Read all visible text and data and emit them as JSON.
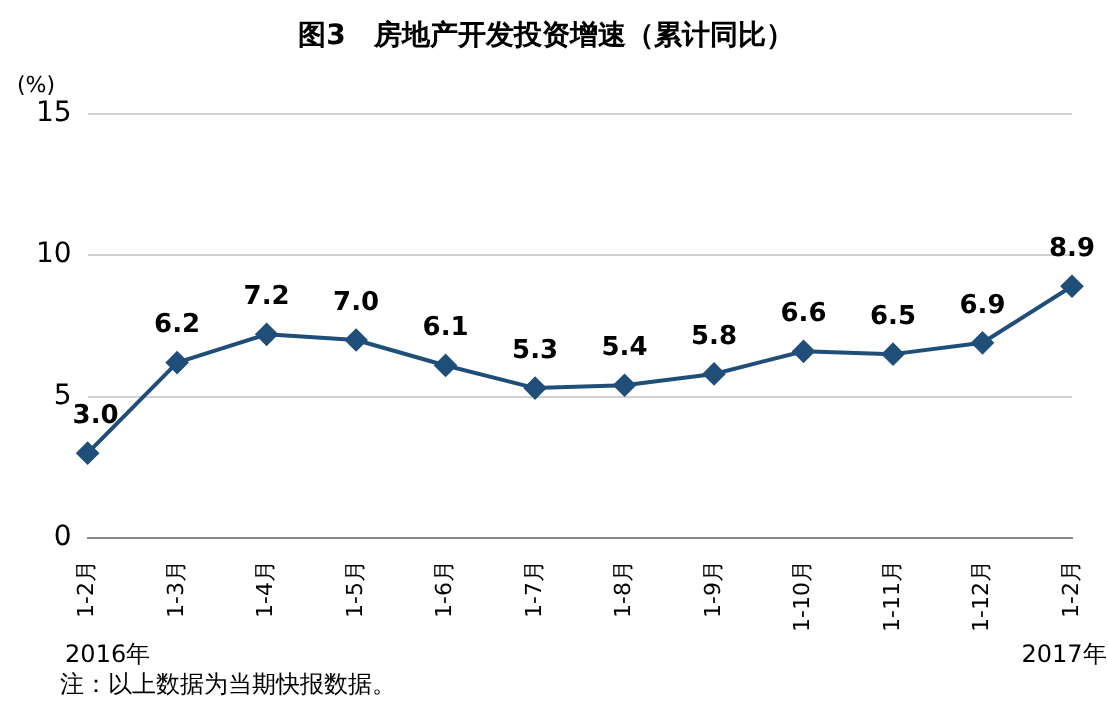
{
  "chart_data": {
    "type": "line",
    "title": "图3　房地产开发投资增速（累计同比）",
    "ylabel": "(%)",
    "categories": [
      "1-2月",
      "1-3月",
      "1-4月",
      "1-5月",
      "1-6月",
      "1-7月",
      "1-8月",
      "1-9月",
      "1-10月",
      "1-11月",
      "1-12月",
      "1-2月"
    ],
    "series": [
      {
        "color": "#1f4e79",
        "values": [
          3.0,
          6.2,
          7.2,
          7.0,
          6.1,
          5.3,
          5.4,
          5.8,
          6.6,
          6.5,
          6.9,
          8.9
        ],
        "value_labels": [
          "3.0",
          "6.2",
          "7.2",
          "7.0",
          "6.1",
          "5.3",
          "5.4",
          "5.8",
          "6.6",
          "6.5",
          "6.9",
          "8.9"
        ]
      }
    ],
    "ylim": [
      0,
      15
    ],
    "yticks": [
      0,
      5,
      10,
      15
    ],
    "grid": "y",
    "legend": false,
    "marker": "diamond",
    "line_style": "solid",
    "annotations": [
      "2016年",
      "2017年",
      "注：以上数据为当期快报数据。"
    ]
  }
}
